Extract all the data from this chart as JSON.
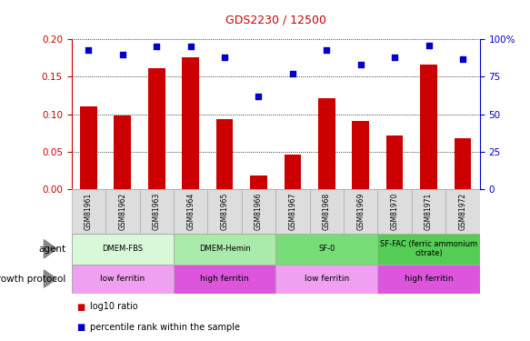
{
  "title": "GDS2230 / 12500",
  "samples": [
    "GSM81961",
    "GSM81962",
    "GSM81963",
    "GSM81964",
    "GSM81965",
    "GSM81966",
    "GSM81967",
    "GSM81968",
    "GSM81969",
    "GSM81970",
    "GSM81971",
    "GSM81972"
  ],
  "log10_ratio": [
    0.11,
    0.098,
    0.161,
    0.176,
    0.093,
    0.018,
    0.046,
    0.121,
    0.091,
    0.072,
    0.166,
    0.068
  ],
  "percentile_rank": [
    93,
    90,
    95,
    95,
    88,
    62,
    77,
    93,
    83,
    88,
    96,
    87
  ],
  "bar_color": "#cc0000",
  "dot_color": "#0000cc",
  "ylim_left": [
    0,
    0.2
  ],
  "ylim_right": [
    0,
    100
  ],
  "yticks_left": [
    0,
    0.05,
    0.1,
    0.15,
    0.2
  ],
  "yticks_right": [
    0,
    25,
    50,
    75,
    100
  ],
  "agent_groups": [
    {
      "label": "DMEM-FBS",
      "start": 0,
      "end": 3,
      "color": "#d8f8d8"
    },
    {
      "label": "DMEM-Hemin",
      "start": 3,
      "end": 6,
      "color": "#aaeaaa"
    },
    {
      "label": "SF-0",
      "start": 6,
      "end": 9,
      "color": "#77dd77"
    },
    {
      "label": "SF-FAC (ferric ammonium\ncitrate)",
      "start": 9,
      "end": 12,
      "color": "#55cc55"
    }
  ],
  "protocol_groups": [
    {
      "label": "low ferritin",
      "start": 0,
      "end": 3,
      "color": "#f0a0f0"
    },
    {
      "label": "high ferritin",
      "start": 3,
      "end": 6,
      "color": "#dd55dd"
    },
    {
      "label": "low ferritin",
      "start": 6,
      "end": 9,
      "color": "#f0a0f0"
    },
    {
      "label": "high ferritin",
      "start": 9,
      "end": 12,
      "color": "#dd55dd"
    }
  ],
  "legend_items": [
    {
      "label": "log10 ratio",
      "color": "#cc0000"
    },
    {
      "label": "percentile rank within the sample",
      "color": "#0000cc"
    }
  ],
  "tick_label_color_left": "#cc0000",
  "tick_label_color_right": "#0000cc",
  "sample_bg_color": "#dddddd",
  "sample_border_color": "#aaaaaa",
  "arrow_color": "#888888"
}
